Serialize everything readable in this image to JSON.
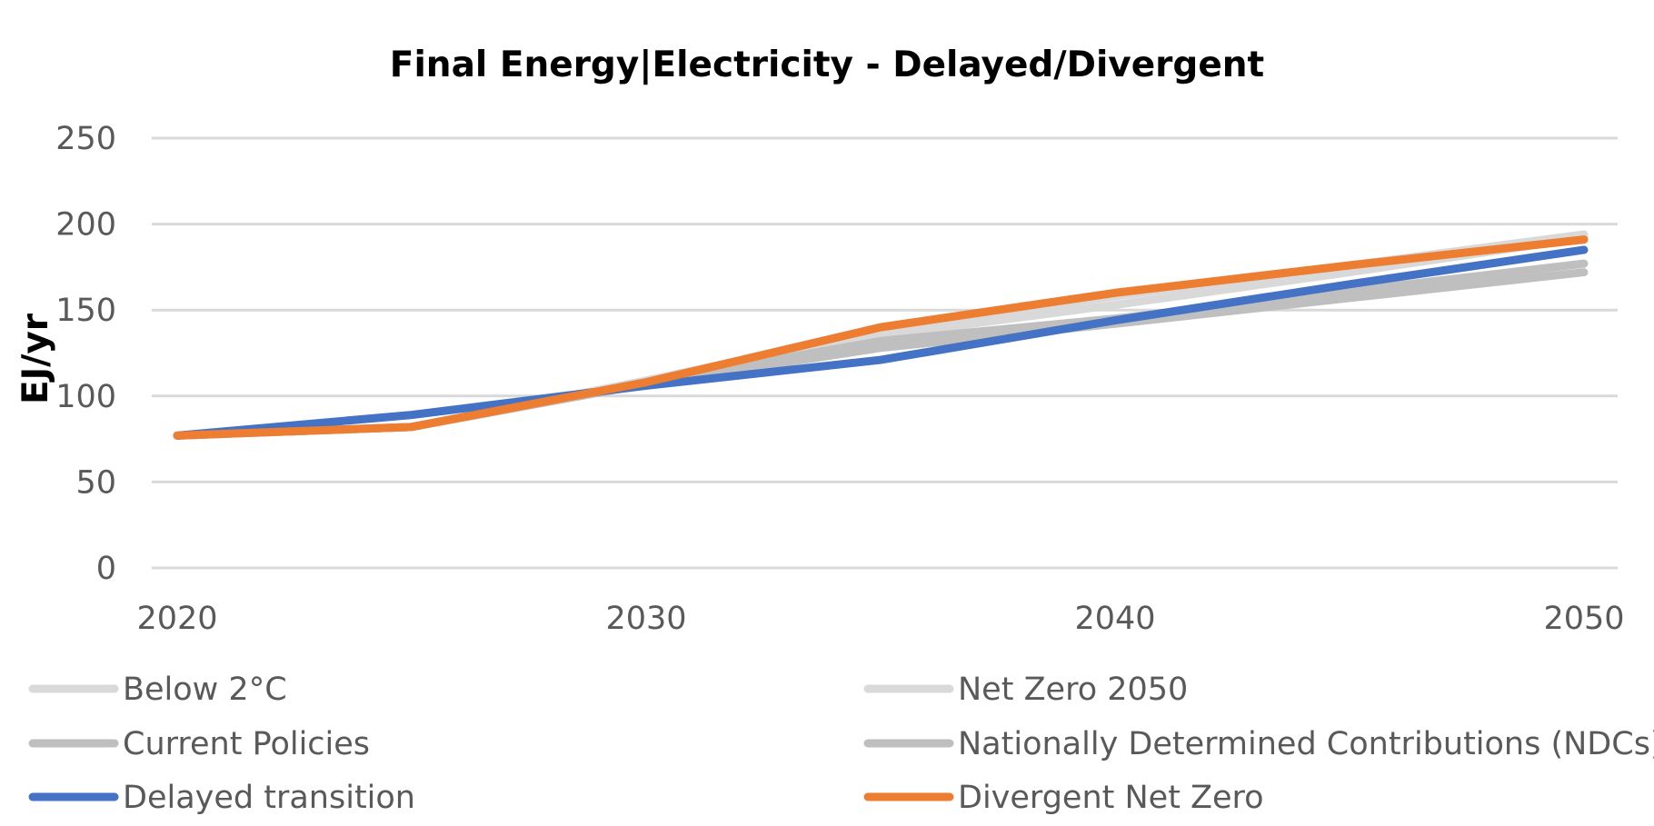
{
  "chart_data": {
    "type": "line",
    "title": "Final Energy|Electricity - Delayed/Divergent",
    "xlabel": "",
    "ylabel": "EJ/yr",
    "xlim": [
      2020,
      2050
    ],
    "ylim": [
      0,
      250
    ],
    "x_ticks": [
      2020,
      2030,
      2040,
      2050
    ],
    "y_ticks": [
      0,
      50,
      100,
      150,
      200,
      250
    ],
    "grid": "horizontal",
    "legend_position": "bottom",
    "x": [
      2020,
      2025,
      2030,
      2035,
      2040,
      2045,
      2050
    ],
    "series": [
      {
        "name": "Below 2°C",
        "color": "#d9d9d9",
        "values": [
          77,
          82,
          108,
          135,
          153,
          172,
          192
        ]
      },
      {
        "name": "Net Zero 2050",
        "color": "#d9d9d9",
        "values": [
          77,
          82,
          109,
          138,
          158,
          176,
          194
        ]
      },
      {
        "name": "Current Policies",
        "color": "#bfbfbf",
        "values": [
          77,
          82,
          107,
          128,
          142,
          157,
          172
        ]
      },
      {
        "name": "Nationally Determined Contributions (NDCs)",
        "color": "#bfbfbf",
        "values": [
          77,
          82,
          108,
          132,
          145,
          161,
          177
        ]
      },
      {
        "name": "Delayed transition",
        "color": "#4472c4",
        "values": [
          77,
          89,
          106,
          121,
          144,
          165,
          185
        ]
      },
      {
        "name": "Divergent Net Zero",
        "color": "#ed7d31",
        "values": [
          77,
          82,
          108,
          140,
          160,
          176,
          191
        ]
      }
    ]
  }
}
